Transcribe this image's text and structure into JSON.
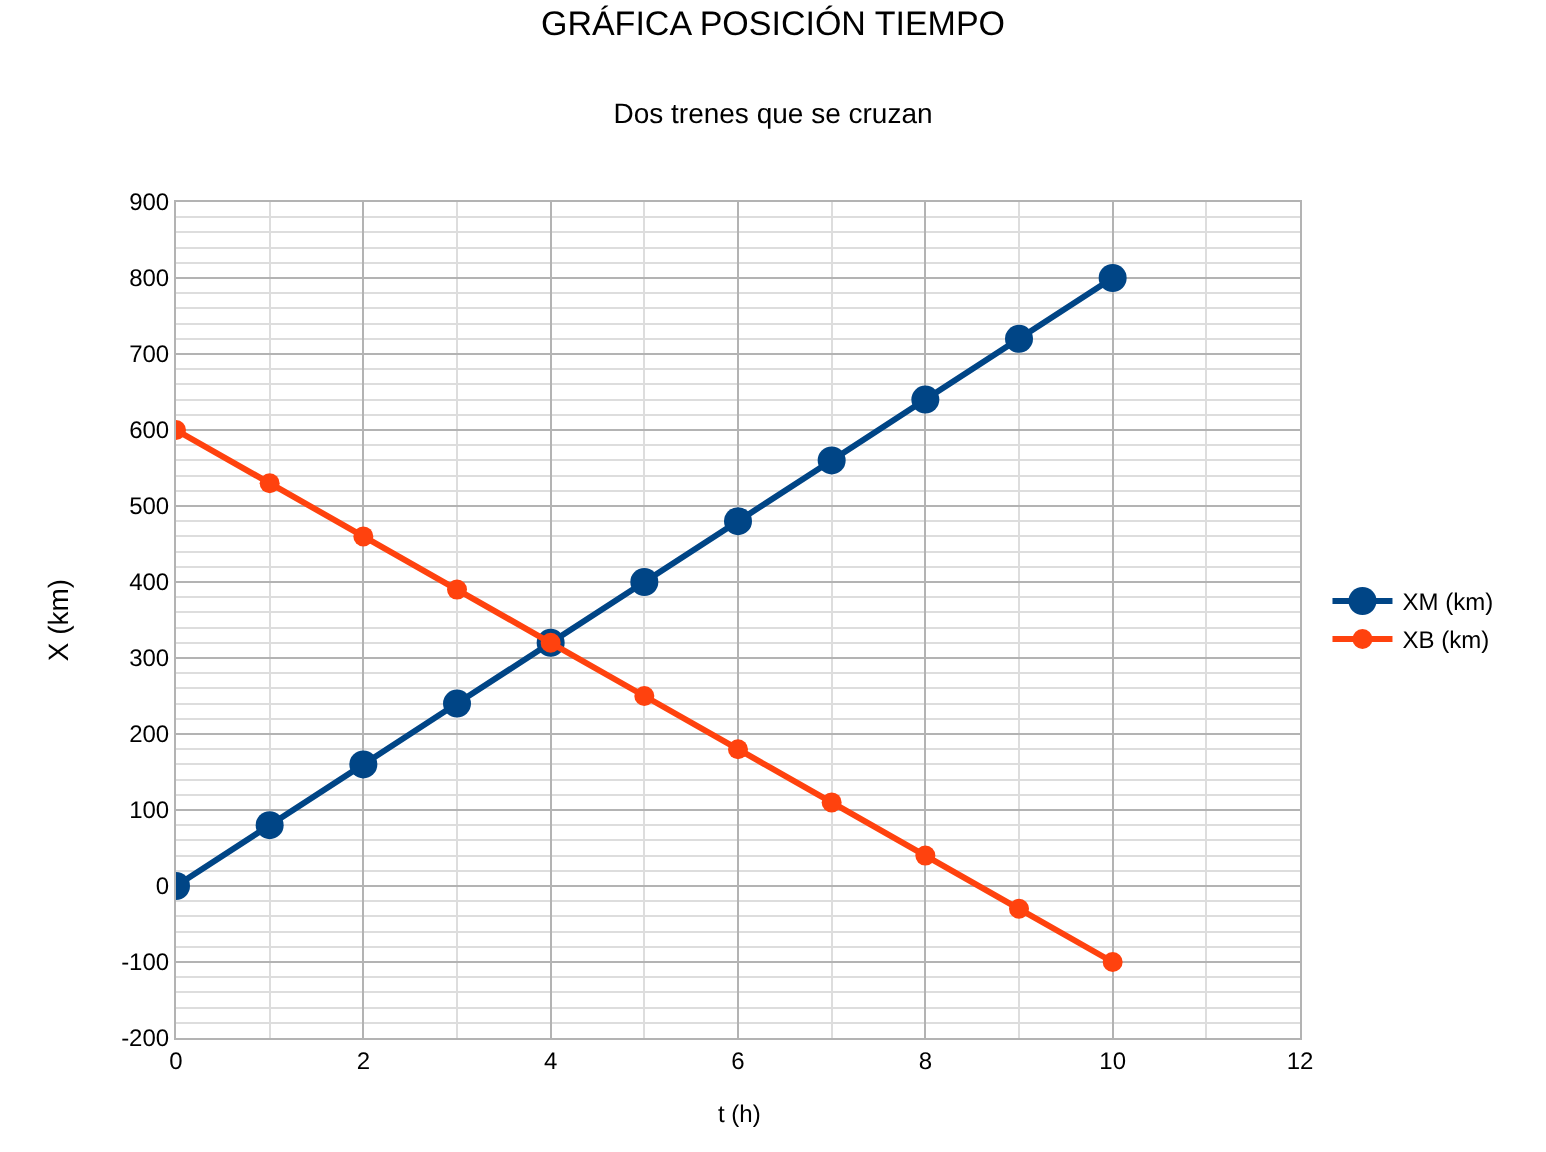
{
  "chart_data": {
    "type": "line",
    "title": "GRÁFICA POSICIÓN TIEMPO",
    "subtitle": "Dos trenes que se cruzan",
    "xlabel": "t (h)",
    "ylabel": "X (km)",
    "x": [
      0,
      1,
      2,
      3,
      4,
      5,
      6,
      7,
      8,
      9,
      10
    ],
    "series": [
      {
        "name": "XM (km)",
        "color": "#004586",
        "values": [
          0,
          80,
          160,
          240,
          320,
          400,
          480,
          560,
          640,
          720,
          800
        ]
      },
      {
        "name": "XB (km)",
        "color": "#ff420e",
        "values": [
          600,
          530,
          460,
          390,
          320,
          250,
          180,
          110,
          40,
          -30,
          -100
        ]
      }
    ],
    "xlim": [
      0,
      12
    ],
    "xticks": [
      0,
      2,
      4,
      6,
      8,
      10,
      12
    ],
    "ylim": [
      -200,
      900
    ],
    "yticks": [
      -200,
      -100,
      0,
      100,
      200,
      300,
      400,
      500,
      600,
      700,
      800,
      900
    ],
    "grid": true,
    "legend": "right",
    "marker": "circle",
    "line_style": "solid"
  }
}
